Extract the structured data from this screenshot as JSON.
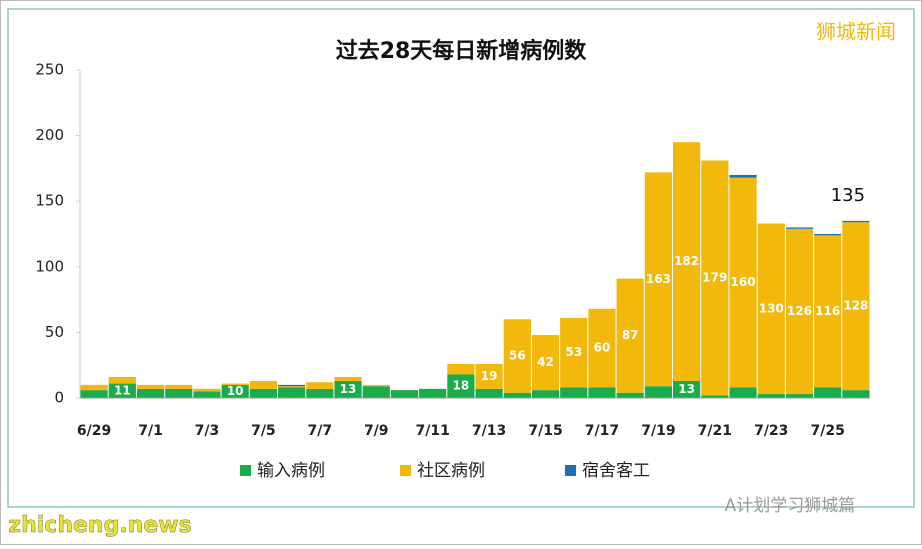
{
  "chart_data": {
    "type": "stacked_bar",
    "title": "过去28天每日新增病例数",
    "watermark": "狮城新闻",
    "annotation": "135",
    "footer": "A计划学习狮城篇",
    "site": "zhicheng.news",
    "categories": [
      "6/29",
      null,
      "7/1",
      null,
      "7/3",
      null,
      "7/5",
      null,
      "7/7",
      null,
      "7/9",
      null,
      "7/11",
      null,
      "7/13",
      null,
      "7/15",
      null,
      "7/17",
      null,
      "7/19",
      null,
      "7/21",
      null,
      "7/23",
      null,
      "7/25",
      null
    ],
    "series": [
      {
        "name": "输入病例",
        "color": "#1aab4b",
        "values": [
          6,
          11,
          7,
          7,
          5,
          10,
          7,
          8,
          7,
          13,
          9,
          6,
          7,
          18,
          7,
          4,
          6,
          8,
          8,
          4,
          9,
          13,
          2,
          8,
          3,
          3,
          8,
          6
        ]
      },
      {
        "name": "社区病例",
        "color": "#f2b90c",
        "values": [
          4,
          5,
          3,
          3,
          2,
          1,
          6,
          1,
          5,
          3,
          1,
          0,
          0,
          8,
          19,
          56,
          42,
          53,
          60,
          87,
          163,
          182,
          179,
          160,
          130,
          126,
          116,
          128
        ]
      },
      {
        "name": "宿舍客工",
        "color": "#1f6fb5",
        "values": [
          0,
          0,
          0,
          0,
          0,
          0,
          0,
          1,
          0,
          0,
          0,
          0,
          0,
          0,
          0,
          0,
          0,
          0,
          0,
          0,
          0,
          0,
          0,
          2,
          0,
          1,
          1,
          1
        ]
      }
    ],
    "ylim": [
      0,
      250
    ],
    "yticks": [
      0,
      50,
      100,
      150,
      200,
      250
    ],
    "grid": false,
    "legend": "bottom"
  }
}
